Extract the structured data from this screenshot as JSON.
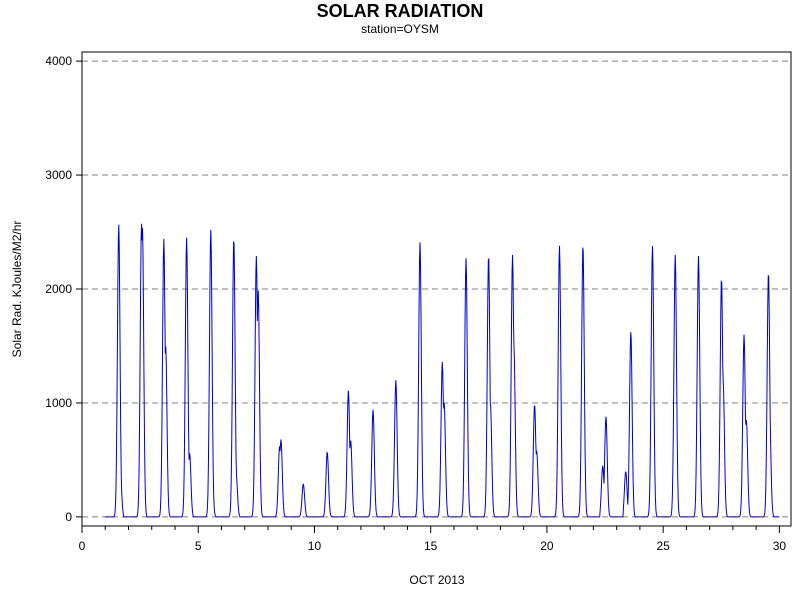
{
  "chart_data": {
    "type": "line",
    "title": "SOLAR RADIATION",
    "subtitle": "station=OYSM",
    "xlabel": "OCT 2013",
    "ylabel": "Solar Rad. KJoules/M2/hr",
    "xlim": [
      0,
      30.5
    ],
    "ylim": [
      -80,
      4080
    ],
    "xticks": [
      0,
      5,
      10,
      15,
      20,
      25,
      30
    ],
    "yticks": [
      0,
      1000,
      2000,
      3000,
      4000
    ],
    "grid": "horizontal dashed at y ticks",
    "line_color": "#0000cc",
    "grid_color": "#808080",
    "daily_peaks": [
      {
        "day": 1,
        "peaks": [
          [
            0.58,
            2570
          ],
          [
            0.65,
            380
          ]
        ]
      },
      {
        "day": 2,
        "peaks": [
          [
            0.56,
            2575
          ],
          [
            0.6,
            2540
          ]
        ]
      },
      {
        "day": 3,
        "peaks": [
          [
            0.52,
            2440
          ],
          [
            0.6,
            1500
          ]
        ]
      },
      {
        "day": 4,
        "peaks": [
          [
            0.5,
            2450
          ],
          [
            0.63,
            560
          ]
        ]
      },
      {
        "day": 5,
        "peaks": [
          [
            0.54,
            2520
          ],
          [
            0.58,
            560
          ]
        ]
      },
      {
        "day": 6,
        "peaks": [
          [
            0.53,
            2450
          ],
          [
            0.63,
            380
          ]
        ]
      },
      {
        "day": 7,
        "peaks": [
          [
            0.5,
            2290
          ],
          [
            0.58,
            1990
          ]
        ]
      },
      {
        "day": 8,
        "peaks": [
          [
            0.5,
            620
          ],
          [
            0.56,
            680
          ]
        ]
      },
      {
        "day": 9,
        "peaks": [
          [
            0.52,
            290
          ]
        ]
      },
      {
        "day": 10,
        "peaks": [
          [
            0.55,
            570
          ]
        ]
      },
      {
        "day": 11,
        "peaks": [
          [
            0.46,
            1110
          ],
          [
            0.56,
            670
          ]
        ]
      },
      {
        "day": 12,
        "peaks": [
          [
            0.52,
            940
          ]
        ]
      },
      {
        "day": 13,
        "peaks": [
          [
            0.5,
            1200
          ]
        ]
      },
      {
        "day": 14,
        "peaks": [
          [
            0.54,
            2410
          ]
        ]
      },
      {
        "day": 15,
        "peaks": [
          [
            0.5,
            1360
          ],
          [
            0.58,
            1000
          ]
        ]
      },
      {
        "day": 16,
        "peaks": [
          [
            0.52,
            2270
          ]
        ]
      },
      {
        "day": 17,
        "peaks": [
          [
            0.49,
            2300
          ],
          [
            0.57,
            1000
          ]
        ]
      },
      {
        "day": 18,
        "peaks": [
          [
            0.52,
            2300
          ],
          [
            0.58,
            1500
          ]
        ]
      },
      {
        "day": 19,
        "peaks": [
          [
            0.47,
            990
          ],
          [
            0.56,
            580
          ]
        ]
      },
      {
        "day": 20,
        "peaks": [
          [
            0.54,
            2380
          ]
        ]
      },
      {
        "day": 21,
        "peaks": [
          [
            0.55,
            2390
          ]
        ]
      },
      {
        "day": 22,
        "peaks": [
          [
            0.4,
            450
          ],
          [
            0.54,
            880
          ]
        ]
      },
      {
        "day": 23,
        "peaks": [
          [
            0.39,
            400
          ],
          [
            0.61,
            1630
          ]
        ]
      },
      {
        "day": 24,
        "peaks": [
          [
            0.54,
            2380
          ]
        ]
      },
      {
        "day": 25,
        "peaks": [
          [
            0.52,
            2300
          ]
        ]
      },
      {
        "day": 26,
        "peaks": [
          [
            0.52,
            2290
          ]
        ]
      },
      {
        "day": 27,
        "peaks": [
          [
            0.51,
            2100
          ],
          [
            0.58,
            1200
          ]
        ]
      },
      {
        "day": 28,
        "peaks": [
          [
            0.48,
            1600
          ],
          [
            0.58,
            850
          ]
        ]
      },
      {
        "day": 29,
        "peaks": [
          [
            0.53,
            2150
          ],
          [
            0.58,
            900
          ]
        ]
      }
    ]
  }
}
